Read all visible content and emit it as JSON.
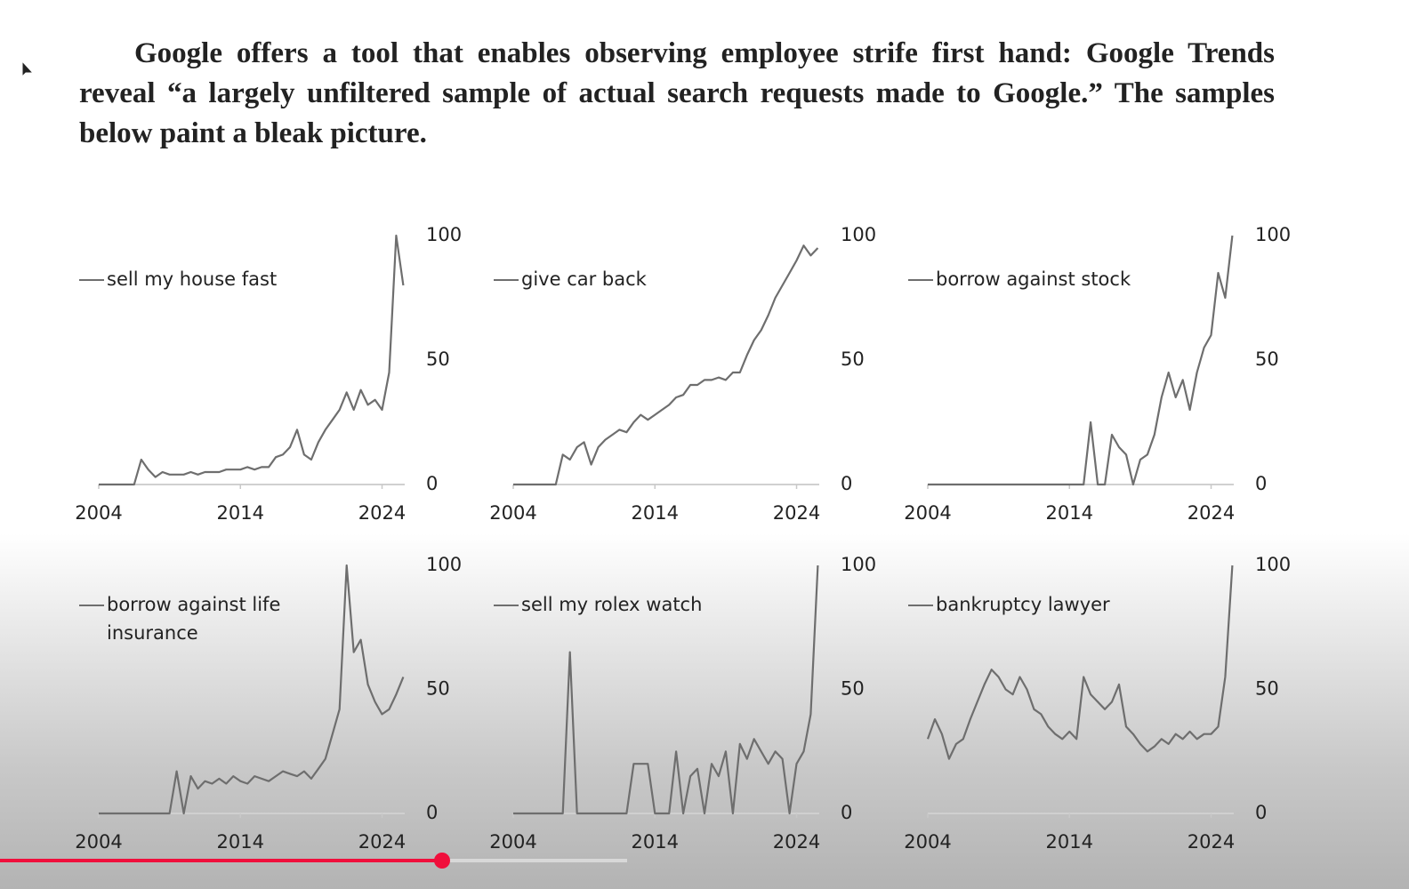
{
  "caption": "Google offers a tool that enables observing employee strife first hand: Google Trends reveal “a largely unfiltered sample of actual search requests made to Google.” The samples below paint a bleak picture.",
  "chart_data": [
    {
      "type": "line",
      "xlim": [
        2004,
        2025.6
      ],
      "xticks": [
        2004,
        2014,
        2024
      ],
      "ylim": [
        0,
        100
      ],
      "yticks": [
        0,
        50,
        100
      ],
      "series": [
        {
          "name": "sell my house fast",
          "color": "#6e6e6e",
          "x": [
            2004,
            2004.5,
            2005,
            2005.5,
            2006,
            2006.5,
            2007,
            2007.5,
            2008,
            2008.5,
            2009,
            2009.5,
            2010,
            2010.5,
            2011,
            2011.5,
            2012,
            2012.5,
            2013,
            2013.5,
            2014,
            2014.5,
            2015,
            2015.5,
            2016,
            2016.5,
            2017,
            2017.5,
            2018,
            2018.5,
            2019,
            2019.5,
            2020,
            2020.5,
            2021,
            2021.5,
            2022,
            2022.5,
            2023,
            2023.5,
            2024,
            2024.5,
            2025,
            2025.5
          ],
          "values": [
            0,
            0,
            0,
            0,
            0,
            0,
            10,
            6,
            3,
            5,
            4,
            4,
            4,
            5,
            4,
            5,
            5,
            5,
            6,
            6,
            6,
            7,
            6,
            7,
            7,
            11,
            12,
            15,
            22,
            12,
            10,
            17,
            22,
            26,
            30,
            37,
            30,
            38,
            32,
            34,
            30,
            45,
            100,
            80
          ]
        }
      ]
    },
    {
      "type": "line",
      "xlim": [
        2004,
        2025.6
      ],
      "xticks": [
        2004,
        2014,
        2024
      ],
      "ylim": [
        0,
        100
      ],
      "yticks": [
        0,
        50,
        100
      ],
      "series": [
        {
          "name": "give car back",
          "color": "#6e6e6e",
          "x": [
            2004,
            2004.5,
            2005,
            2005.5,
            2006,
            2006.5,
            2007,
            2007.5,
            2008,
            2008.5,
            2009,
            2009.5,
            2010,
            2010.5,
            2011,
            2011.5,
            2012,
            2012.5,
            2013,
            2013.5,
            2014,
            2014.5,
            2015,
            2015.5,
            2016,
            2016.5,
            2017,
            2017.5,
            2018,
            2018.5,
            2019,
            2019.5,
            2020,
            2020.5,
            2021,
            2021.5,
            2022,
            2022.5,
            2023,
            2023.5,
            2024,
            2024.5,
            2025,
            2025.5
          ],
          "values": [
            0,
            0,
            0,
            0,
            0,
            0,
            0,
            12,
            10,
            15,
            17,
            8,
            15,
            18,
            20,
            22,
            21,
            25,
            28,
            26,
            28,
            30,
            32,
            35,
            36,
            40,
            40,
            42,
            42,
            43,
            42,
            45,
            45,
            52,
            58,
            62,
            68,
            75,
            80,
            85,
            90,
            96,
            92,
            95
          ]
        }
      ]
    },
    {
      "type": "line",
      "xlim": [
        2004,
        2025.6
      ],
      "xticks": [
        2004,
        2014,
        2024
      ],
      "ylim": [
        0,
        100
      ],
      "yticks": [
        0,
        50,
        100
      ],
      "series": [
        {
          "name": "borrow against stock",
          "color": "#6e6e6e",
          "x": [
            2004,
            2004.5,
            2005,
            2005.5,
            2006,
            2006.5,
            2007,
            2007.5,
            2008,
            2008.5,
            2009,
            2009.5,
            2010,
            2010.5,
            2011,
            2011.5,
            2012,
            2012.5,
            2013,
            2013.5,
            2014,
            2014.5,
            2015,
            2015.5,
            2016,
            2016.5,
            2017,
            2017.5,
            2018,
            2018.5,
            2019,
            2019.5,
            2020,
            2020.5,
            2021,
            2021.5,
            2022,
            2022.5,
            2023,
            2023.5,
            2024,
            2024.5,
            2025,
            2025.5
          ],
          "values": [
            0,
            0,
            0,
            0,
            0,
            0,
            0,
            0,
            0,
            0,
            0,
            0,
            0,
            0,
            0,
            0,
            0,
            0,
            0,
            0,
            0,
            0,
            0,
            25,
            0,
            0,
            20,
            15,
            12,
            0,
            10,
            12,
            20,
            35,
            45,
            35,
            42,
            30,
            45,
            55,
            60,
            85,
            75,
            100
          ]
        }
      ]
    },
    {
      "type": "line",
      "xlim": [
        2004,
        2025.6
      ],
      "xticks": [
        2004,
        2014,
        2024
      ],
      "ylim": [
        0,
        100
      ],
      "yticks": [
        0,
        50,
        100
      ],
      "series": [
        {
          "name": "borrow against life insurance",
          "color": "#6e6e6e",
          "x": [
            2004,
            2004.5,
            2005,
            2005.5,
            2006,
            2006.5,
            2007,
            2007.5,
            2008,
            2008.5,
            2009,
            2009.5,
            2010,
            2010.5,
            2011,
            2011.5,
            2012,
            2012.5,
            2013,
            2013.5,
            2014,
            2014.5,
            2015,
            2015.5,
            2016,
            2016.5,
            2017,
            2017.5,
            2018,
            2018.5,
            2019,
            2019.5,
            2020,
            2020.5,
            2021,
            2021.5,
            2022,
            2022.5,
            2023,
            2023.5,
            2024,
            2024.5,
            2025,
            2025.5
          ],
          "values": [
            0,
            0,
            0,
            0,
            0,
            0,
            0,
            0,
            0,
            0,
            0,
            17,
            0,
            15,
            10,
            13,
            12,
            14,
            12,
            15,
            13,
            12,
            15,
            14,
            13,
            15,
            17,
            16,
            15,
            17,
            14,
            18,
            22,
            32,
            42,
            100,
            65,
            70,
            52,
            45,
            40,
            42,
            48,
            55
          ]
        }
      ]
    },
    {
      "type": "line",
      "xlim": [
        2004,
        2025.6
      ],
      "xticks": [
        2004,
        2014,
        2024
      ],
      "ylim": [
        0,
        100
      ],
      "yticks": [
        0,
        50,
        100
      ],
      "series": [
        {
          "name": "sell my rolex watch",
          "color": "#6e6e6e",
          "x": [
            2004,
            2004.5,
            2005,
            2005.5,
            2006,
            2006.5,
            2007,
            2007.5,
            2008,
            2008.5,
            2009,
            2009.5,
            2010,
            2010.5,
            2011,
            2011.5,
            2012,
            2012.5,
            2013,
            2013.5,
            2014,
            2014.5,
            2015,
            2015.5,
            2016,
            2016.5,
            2017,
            2017.5,
            2018,
            2018.5,
            2019,
            2019.5,
            2020,
            2020.5,
            2021,
            2021.5,
            2022,
            2022.5,
            2023,
            2023.5,
            2024,
            2024.5,
            2025,
            2025.5
          ],
          "values": [
            0,
            0,
            0,
            0,
            0,
            0,
            0,
            0,
            65,
            0,
            0,
            0,
            0,
            0,
            0,
            0,
            0,
            20,
            20,
            20,
            0,
            0,
            0,
            25,
            0,
            15,
            18,
            0,
            20,
            15,
            25,
            0,
            28,
            22,
            30,
            25,
            20,
            25,
            22,
            0,
            20,
            25,
            40,
            100
          ]
        }
      ]
    },
    {
      "type": "line",
      "xlim": [
        2004,
        2025.6
      ],
      "xticks": [
        2004,
        2014,
        2024
      ],
      "ylim": [
        0,
        100
      ],
      "yticks": [
        0,
        50,
        100
      ],
      "series": [
        {
          "name": "bankruptcy lawyer",
          "color": "#6e6e6e",
          "x": [
            2004,
            2004.5,
            2005,
            2005.5,
            2006,
            2006.5,
            2007,
            2007.5,
            2008,
            2008.5,
            2009,
            2009.5,
            2010,
            2010.5,
            2011,
            2011.5,
            2012,
            2012.5,
            2013,
            2013.5,
            2014,
            2014.5,
            2015,
            2015.5,
            2016,
            2016.5,
            2017,
            2017.5,
            2018,
            2018.5,
            2019,
            2019.5,
            2020,
            2020.5,
            2021,
            2021.5,
            2022,
            2022.5,
            2023,
            2023.5,
            2024,
            2024.5,
            2025,
            2025.5
          ],
          "values": [
            30,
            38,
            32,
            22,
            28,
            30,
            38,
            45,
            52,
            58,
            55,
            50,
            48,
            55,
            50,
            42,
            40,
            35,
            32,
            30,
            33,
            30,
            55,
            48,
            45,
            42,
            45,
            52,
            35,
            32,
            28,
            25,
            27,
            30,
            28,
            32,
            30,
            33,
            30,
            32,
            32,
            35,
            55,
            100
          ]
        }
      ]
    }
  ]
}
